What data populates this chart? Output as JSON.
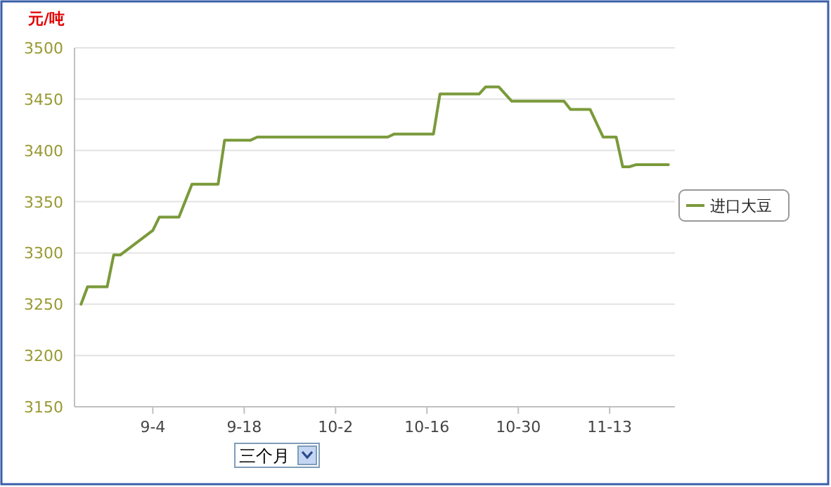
{
  "chart_data": {
    "type": "line",
    "ylabel": "元/吨",
    "annotations": [
      "三个月"
    ],
    "x": [
      "--08-24",
      "--08-25",
      "--08-28",
      "--08-29",
      "--08-30",
      "--09-04",
      "--09-05",
      "--09-08",
      "--09-10",
      "--09-14",
      "--09-15",
      "--09-19",
      "--09-20",
      "--10-10",
      "--10-11",
      "--10-17",
      "--10-18",
      "--10-24",
      "--10-25",
      "--10-27",
      "--10-29",
      "--11-06",
      "--11-07",
      "--11-10",
      "--11-12",
      "--11-14",
      "--11-15",
      "--11-16",
      "--11-17",
      "--11-22"
    ],
    "series": [
      {
        "name": "进口大豆",
        "color": "#7a9a3a",
        "values": [
          3250,
          3267,
          3267,
          3298,
          3298,
          3322,
          3335,
          3335,
          3367,
          3367,
          3410,
          3410,
          3413,
          3413,
          3416,
          3416,
          3455,
          3455,
          3462,
          3462,
          3448,
          3448,
          3440,
          3440,
          3413,
          3413,
          3384,
          3384,
          3386,
          3386
        ]
      }
    ],
    "xlim": [
      "--08-23",
      "--11-23"
    ],
    "ylim": [
      3150,
      3500
    ],
    "xticks": [
      {
        "value": "--09-04",
        "label": "9-4"
      },
      {
        "value": "--09-18",
        "label": "9-18"
      },
      {
        "value": "--10-02",
        "label": "10-2"
      },
      {
        "value": "--10-16",
        "label": "10-16"
      },
      {
        "value": "--10-30",
        "label": "10-30"
      },
      {
        "value": "--11-13",
        "label": "11-13"
      }
    ],
    "yticks": [
      3150,
      3200,
      3250,
      3300,
      3350,
      3400,
      3450,
      3500
    ],
    "grid": "y",
    "legend": "right"
  }
}
